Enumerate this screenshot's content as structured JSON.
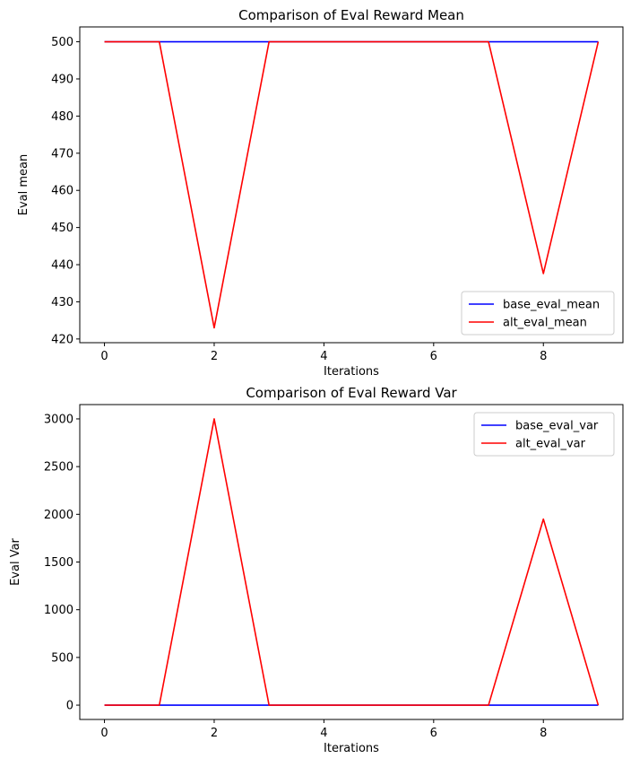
{
  "chart_data": [
    {
      "type": "line",
      "title": "Comparison of Eval Reward Mean",
      "xlabel": "Iterations",
      "ylabel": "Eval mean",
      "x": [
        0,
        1,
        2,
        3,
        4,
        5,
        6,
        7,
        8,
        9
      ],
      "xlim": [
        -0.45,
        9.45
      ],
      "ylim": [
        419,
        504
      ],
      "xticks": [
        0,
        2,
        4,
        6,
        8
      ],
      "yticks": [
        420,
        430,
        440,
        450,
        460,
        470,
        480,
        490,
        500
      ],
      "legend_position": "lower-right",
      "series": [
        {
          "name": "base_eval_mean",
          "color": "#0000ff",
          "values": [
            500,
            500,
            500,
            500,
            500,
            500,
            500,
            500,
            500,
            500
          ]
        },
        {
          "name": "alt_eval_mean",
          "color": "#ff0000",
          "values": [
            500,
            500,
            423,
            500,
            500,
            500,
            500,
            500,
            437.6,
            500
          ]
        }
      ]
    },
    {
      "type": "line",
      "title": "Comparison of Eval Reward Var",
      "xlabel": "Iterations",
      "ylabel": "Eval Var",
      "x": [
        0,
        1,
        2,
        3,
        4,
        5,
        6,
        7,
        8,
        9
      ],
      "xlim": [
        -0.45,
        9.45
      ],
      "ylim": [
        -150,
        3150
      ],
      "xticks": [
        0,
        2,
        4,
        6,
        8
      ],
      "yticks": [
        0,
        500,
        1000,
        1500,
        2000,
        2500,
        3000
      ],
      "legend_position": "upper-right",
      "series": [
        {
          "name": "base_eval_var",
          "color": "#0000ff",
          "values": [
            0,
            0,
            0,
            0,
            0,
            0,
            0,
            0,
            0,
            0
          ]
        },
        {
          "name": "alt_eval_var",
          "color": "#ff0000",
          "values": [
            0,
            0,
            3000,
            0,
            0,
            0,
            0,
            0,
            1950,
            0
          ]
        }
      ]
    }
  ]
}
